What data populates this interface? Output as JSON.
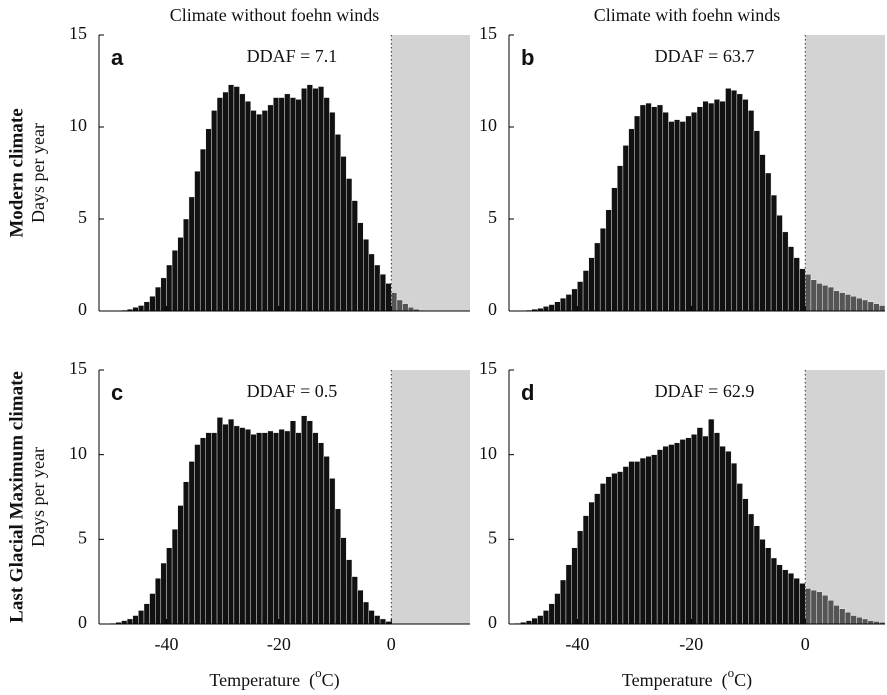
{
  "chart_data": [
    {
      "type": "histogram",
      "panel": "a",
      "title": "Climate without foehn winds",
      "row_label": "Modern climate",
      "ylabel": "Days per year",
      "annotation": "DDAF = 7.1",
      "bins": [
        -52,
        -51,
        -50,
        -49,
        -48,
        -47,
        -46,
        -45,
        -44,
        -43,
        -42,
        -41,
        -40,
        -39,
        -38,
        -37,
        -36,
        -35,
        -34,
        -33,
        -32,
        -31,
        -30,
        -29,
        -28,
        -27,
        -26,
        -25,
        -24,
        -23,
        -22,
        -21,
        -20,
        -19,
        -18,
        -17,
        -16,
        -15,
        -14,
        -13,
        -12,
        -11,
        -10,
        -9,
        -8,
        -7,
        -6,
        -5,
        -4,
        -3,
        -2,
        -1,
        0,
        1,
        2,
        3,
        4,
        5,
        6,
        7,
        8,
        9,
        10,
        11,
        12,
        13,
        14
      ],
      "values": [
        0,
        0,
        0,
        0.02,
        0.05,
        0.1,
        0.2,
        0.3,
        0.5,
        0.8,
        1.3,
        1.8,
        2.5,
        3.3,
        4.0,
        5.0,
        6.2,
        7.6,
        8.8,
        9.9,
        10.9,
        11.6,
        11.9,
        12.3,
        12.2,
        11.8,
        11.4,
        10.9,
        10.7,
        10.9,
        11.2,
        11.6,
        11.6,
        11.8,
        11.6,
        11.5,
        12.1,
        12.3,
        12.1,
        12.2,
        11.6,
        10.8,
        9.6,
        8.4,
        7.2,
        6.0,
        4.8,
        3.9,
        3.1,
        2.5,
        2.0,
        1.5,
        1.0,
        0.6,
        0.4,
        0.2,
        0.1,
        0.05,
        0,
        0,
        0,
        0,
        0,
        0,
        0,
        0
      ],
      "color": "#111111",
      "above_color": "#555555",
      "shaded_region": [
        0,
        14
      ],
      "shade_color": "#d3d3d3",
      "xlim": [
        -52,
        14
      ],
      "xticks": [
        -40,
        -20,
        0
      ],
      "show_xtick_labels": false,
      "ylim": [
        0,
        15
      ],
      "yticks": [
        0,
        5,
        10,
        15
      ]
    },
    {
      "type": "histogram",
      "panel": "b",
      "title": "Climate with foehn winds",
      "annotation": "DDAF = 63.7",
      "bins": [
        -52,
        -51,
        -50,
        -49,
        -48,
        -47,
        -46,
        -45,
        -44,
        -43,
        -42,
        -41,
        -40,
        -39,
        -38,
        -37,
        -36,
        -35,
        -34,
        -33,
        -32,
        -31,
        -30,
        -29,
        -28,
        -27,
        -26,
        -25,
        -24,
        -23,
        -22,
        -21,
        -20,
        -19,
        -18,
        -17,
        -16,
        -15,
        -14,
        -13,
        -12,
        -11,
        -10,
        -9,
        -8,
        -7,
        -6,
        -5,
        -4,
        -3,
        -2,
        -1,
        0,
        1,
        2,
        3,
        4,
        5,
        6,
        7,
        8,
        9,
        10,
        11,
        12,
        13,
        14
      ],
      "values": [
        0,
        0,
        0.02,
        0.05,
        0.1,
        0.15,
        0.25,
        0.35,
        0.5,
        0.7,
        0.9,
        1.2,
        1.6,
        2.2,
        2.9,
        3.7,
        4.5,
        5.5,
        6.7,
        7.9,
        9.0,
        9.9,
        10.6,
        11.2,
        11.3,
        11.1,
        11.2,
        10.8,
        10.3,
        10.4,
        10.3,
        10.6,
        10.8,
        11.1,
        11.4,
        11.3,
        11.5,
        11.4,
        12.1,
        12.0,
        11.8,
        11.5,
        10.9,
        9.8,
        8.5,
        7.5,
        6.3,
        5.2,
        4.3,
        3.5,
        2.9,
        2.3,
        2.0,
        1.7,
        1.5,
        1.4,
        1.3,
        1.1,
        1.0,
        0.9,
        0.8,
        0.7,
        0.6,
        0.5,
        0.4,
        0.3
      ],
      "color": "#111111",
      "above_color": "#555555",
      "shaded_region": [
        0,
        14
      ],
      "shade_color": "#d3d3d3",
      "xlim": [
        -52,
        14
      ],
      "xticks": [
        -40,
        -20,
        0
      ],
      "show_xtick_labels": false,
      "ylim": [
        0,
        15
      ],
      "yticks": [
        0,
        5,
        10,
        15
      ]
    },
    {
      "type": "histogram",
      "panel": "c",
      "row_label": "Last Glacial Maximum climate",
      "ylabel": "Days per year",
      "annotation": "DDAF = 0.5",
      "xlabel": [
        "Temperature  (",
        "o",
        "C)"
      ],
      "bins": [
        -52,
        -51,
        -50,
        -49,
        -48,
        -47,
        -46,
        -45,
        -44,
        -43,
        -42,
        -41,
        -40,
        -39,
        -38,
        -37,
        -36,
        -35,
        -34,
        -33,
        -32,
        -31,
        -30,
        -29,
        -28,
        -27,
        -26,
        -25,
        -24,
        -23,
        -22,
        -21,
        -20,
        -19,
        -18,
        -17,
        -16,
        -15,
        -14,
        -13,
        -12,
        -11,
        -10,
        -9,
        -8,
        -7,
        -6,
        -5,
        -4,
        -3,
        -2,
        -1,
        0,
        1,
        2,
        3,
        4,
        5,
        6,
        7,
        8,
        9,
        10,
        11,
        12,
        13,
        14
      ],
      "values": [
        0,
        0.02,
        0.05,
        0.1,
        0.2,
        0.3,
        0.5,
        0.8,
        1.2,
        1.8,
        2.7,
        3.6,
        4.5,
        5.6,
        7.0,
        8.4,
        9.6,
        10.6,
        11.0,
        11.3,
        11.3,
        12.2,
        11.8,
        12.1,
        11.7,
        11.6,
        11.5,
        11.2,
        11.3,
        11.3,
        11.4,
        11.3,
        11.5,
        11.4,
        12.0,
        11.3,
        12.3,
        12.0,
        11.3,
        10.7,
        9.9,
        8.6,
        6.8,
        5.1,
        3.8,
        2.8,
        2.0,
        1.3,
        0.8,
        0.5,
        0.3,
        0.15,
        0.05,
        0,
        0,
        0,
        0,
        0,
        0,
        0,
        0,
        0,
        0,
        0,
        0,
        0
      ],
      "color": "#111111",
      "above_color": "#555555",
      "shaded_region": [
        0,
        14
      ],
      "shade_color": "#d3d3d3",
      "xlim": [
        -52,
        14
      ],
      "xticks": [
        -40,
        -20,
        0
      ],
      "show_xtick_labels": true,
      "ylim": [
        0,
        15
      ],
      "yticks": [
        0,
        5,
        10,
        15
      ]
    },
    {
      "type": "histogram",
      "panel": "d",
      "annotation": "DDAF = 62.9",
      "xlabel": [
        "Temperature  (",
        "o",
        "C)"
      ],
      "bins": [
        -52,
        -51,
        -50,
        -49,
        -48,
        -47,
        -46,
        -45,
        -44,
        -43,
        -42,
        -41,
        -40,
        -39,
        -38,
        -37,
        -36,
        -35,
        -34,
        -33,
        -32,
        -31,
        -30,
        -29,
        -28,
        -27,
        -26,
        -25,
        -24,
        -23,
        -22,
        -21,
        -20,
        -19,
        -18,
        -17,
        -16,
        -15,
        -14,
        -13,
        -12,
        -11,
        -10,
        -9,
        -8,
        -7,
        -6,
        -5,
        -4,
        -3,
        -2,
        -1,
        0,
        1,
        2,
        3,
        4,
        5,
        6,
        7,
        8,
        9,
        10,
        11,
        12,
        13,
        14
      ],
      "values": [
        0.02,
        0.05,
        0.1,
        0.2,
        0.35,
        0.5,
        0.8,
        1.2,
        1.8,
        2.6,
        3.5,
        4.5,
        5.5,
        6.4,
        7.2,
        7.7,
        8.3,
        8.7,
        8.9,
        9.0,
        9.3,
        9.6,
        9.6,
        9.8,
        9.9,
        10.0,
        10.3,
        10.5,
        10.6,
        10.7,
        10.9,
        11.0,
        11.2,
        11.6,
        11.1,
        12.1,
        11.3,
        10.5,
        10.2,
        9.5,
        8.3,
        7.4,
        6.5,
        5.8,
        5.0,
        4.5,
        3.9,
        3.5,
        3.2,
        3.0,
        2.7,
        2.4,
        2.1,
        2.0,
        1.9,
        1.7,
        1.4,
        1.1,
        0.9,
        0.7,
        0.5,
        0.4,
        0.3,
        0.2,
        0.15,
        0.1
      ],
      "color": "#111111",
      "above_color": "#555555",
      "shaded_region": [
        0,
        14
      ],
      "shade_color": "#d3d3d3",
      "xlim": [
        -52,
        14
      ],
      "xticks": [
        -40,
        -20,
        0
      ],
      "show_xtick_labels": true,
      "ylim": [
        0,
        15
      ],
      "yticks": [
        0,
        5,
        10,
        15
      ]
    }
  ]
}
